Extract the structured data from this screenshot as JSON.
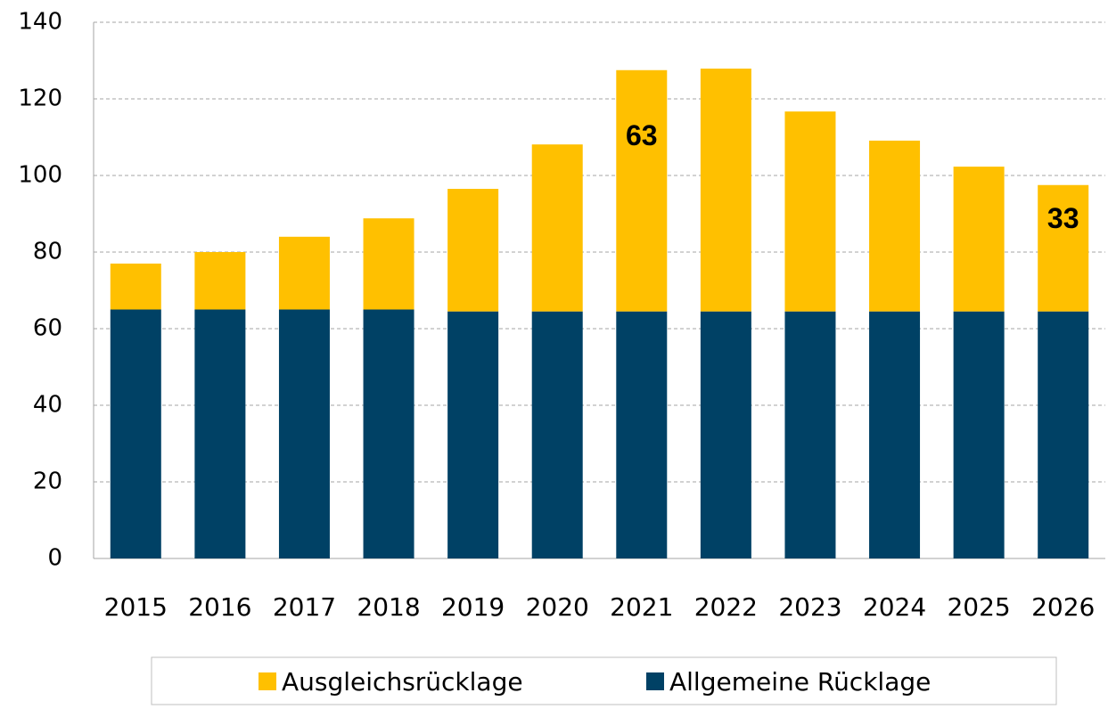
{
  "chart_data": {
    "type": "stacked_bar",
    "categories": [
      "2015",
      "2016",
      "2017",
      "2018",
      "2019",
      "2020",
      "2021",
      "2022",
      "2023",
      "2024",
      "2025",
      "2026"
    ],
    "series": [
      {
        "name": "Allgemeine Rücklage",
        "color": "#004165",
        "values": [
          65,
          65,
          65,
          65,
          64.5,
          64.5,
          64.5,
          64.5,
          64.5,
          64.5,
          64.5,
          64.5
        ]
      },
      {
        "name": "Ausgleichsrücklage",
        "color": "#ffc000",
        "values": [
          12,
          15,
          19,
          23.8,
          32,
          43.6,
          63,
          63.4,
          52.2,
          44.6,
          37.8,
          33
        ],
        "value_labels": [
          null,
          null,
          null,
          null,
          null,
          null,
          "63",
          null,
          null,
          null,
          null,
          "33"
        ]
      }
    ],
    "ylim": [
      0,
      140
    ],
    "yticks": [
      0,
      20,
      40,
      60,
      80,
      100,
      120,
      140
    ],
    "grid": true
  }
}
